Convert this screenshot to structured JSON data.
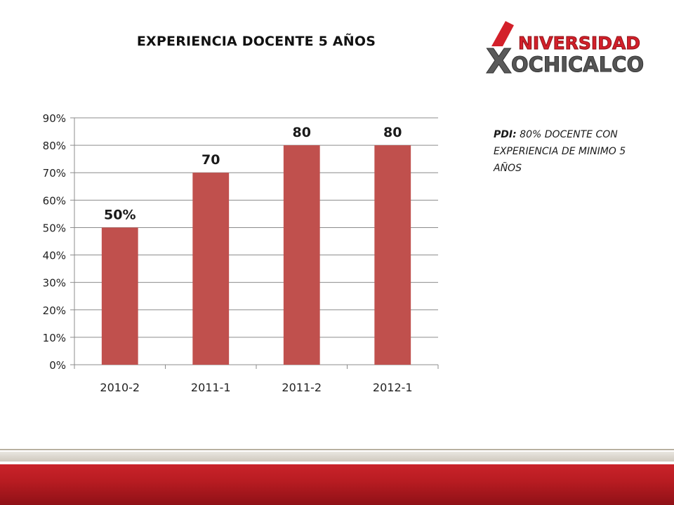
{
  "slide": {
    "title": "EXPERIENCIA DOCENTE 5 AÑOS",
    "note_label": "PDI:",
    "note_text": "80%  DOCENTE CON EXPERIENCIA  DE MINIMO 5 AÑOS"
  },
  "logo": {
    "line1": "NIVERSIDAD",
    "line2": "OCHICALCO",
    "mark_letter": "X"
  },
  "colors": {
    "bar": "#c0504d",
    "grid": "#8c8c8c",
    "logo_red": "#d3202a",
    "logo_gray": "#555555",
    "footer_red": "#c9232a"
  },
  "chart_data": {
    "type": "bar",
    "categories": [
      "2010-2",
      "2011-1",
      "2011-2",
      "2012-1"
    ],
    "values": [
      50,
      70,
      80,
      80
    ],
    "data_labels": [
      "50%",
      "70",
      "80",
      "80"
    ],
    "ylim": [
      0,
      90
    ],
    "yticks": [
      0,
      10,
      20,
      30,
      40,
      50,
      60,
      70,
      80,
      90
    ],
    "ytick_suffix": "%",
    "grid": true,
    "legend": "none"
  }
}
